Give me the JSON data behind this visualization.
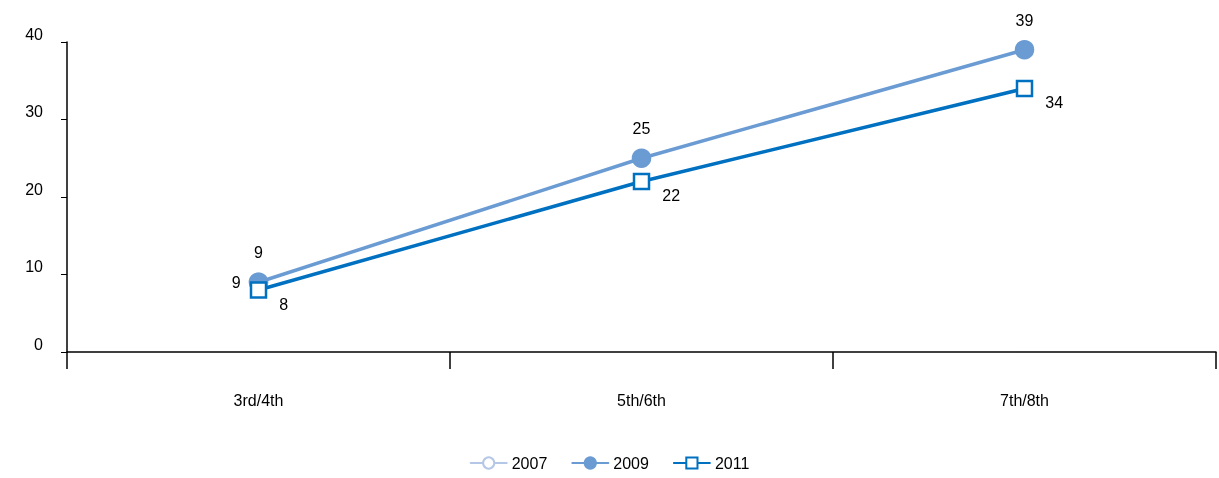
{
  "chart_data": {
    "type": "line",
    "categories": [
      "3rd/4th",
      "5th/6th",
      "7th/8th"
    ],
    "series": [
      {
        "name": "2007",
        "color": "#b4c7e7",
        "marker": "circle",
        "values": [
          9,
          null,
          null
        ]
      },
      {
        "name": "2009",
        "color": "#6a9bd3",
        "marker": "circle",
        "values": [
          9,
          25,
          39
        ]
      },
      {
        "name": "2011",
        "color": "#0070c0",
        "marker": "square",
        "values": [
          8,
          22,
          34
        ]
      }
    ],
    "ylim": [
      0,
      40
    ],
    "yticks": [
      0,
      10,
      20,
      30,
      40
    ],
    "grid": false,
    "legend": "bottom",
    "data_labels": true
  }
}
